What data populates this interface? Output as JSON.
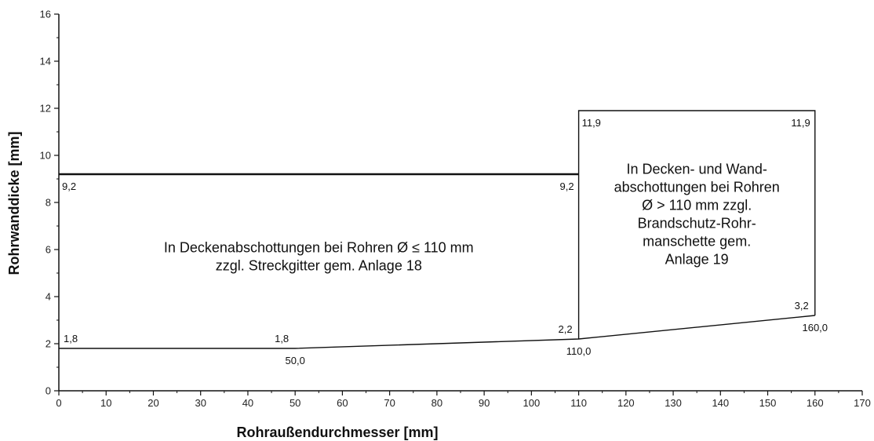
{
  "chart_data": {
    "type": "line",
    "xlabel": "Rohraußendurchmesser [mm]",
    "ylabel": "Rohrwanddicke [mm]",
    "xlim": [
      0,
      170
    ],
    "ylim": [
      0,
      16
    ],
    "xticks": [
      0,
      10,
      20,
      30,
      40,
      50,
      60,
      70,
      80,
      90,
      100,
      110,
      120,
      130,
      140,
      150,
      160,
      170
    ],
    "yticks": [
      0,
      2,
      4,
      6,
      8,
      10,
      12,
      14,
      16
    ],
    "grid": false,
    "series": [
      {
        "values": [
          [
            0,
            9.2
          ],
          [
            110,
            9.2
          ]
        ],
        "style": "thick"
      },
      {
        "values": [
          [
            0,
            1.8
          ],
          [
            50,
            1.8
          ],
          [
            110,
            2.2
          ],
          [
            160,
            3.2
          ]
        ],
        "style": "thin"
      },
      {
        "values": [
          [
            110,
            2.2
          ],
          [
            110,
            11.9
          ],
          [
            160,
            11.9
          ],
          [
            160,
            3.2
          ]
        ],
        "style": "thin"
      }
    ],
    "point_labels": [
      {
        "text": "9,2",
        "x": 0,
        "y": 9.2,
        "anchor": "below-right"
      },
      {
        "text": "9,2",
        "x": 110,
        "y": 9.2,
        "anchor": "below-left"
      },
      {
        "text": "11,9",
        "x": 110,
        "y": 11.9,
        "anchor": "below-right"
      },
      {
        "text": "11,9",
        "x": 160,
        "y": 11.9,
        "anchor": "below-left"
      },
      {
        "text": "1,8",
        "x": 0,
        "y": 1.8,
        "anchor": "above-right"
      },
      {
        "text": "1,8",
        "x": 50,
        "y": 1.8,
        "anchor": "above-left"
      },
      {
        "text": "50,0",
        "x": 50,
        "y": 1.8,
        "anchor": "below"
      },
      {
        "text": "2,2",
        "x": 110,
        "y": 2.2,
        "anchor": "above-left"
      },
      {
        "text": "110,0",
        "x": 110,
        "y": 2.2,
        "anchor": "below"
      },
      {
        "text": "3,2",
        "x": 160,
        "y": 3.2,
        "anchor": "above-left"
      },
      {
        "text": "160,0",
        "x": 160,
        "y": 3.2,
        "anchor": "below"
      }
    ],
    "annotations": [
      {
        "lines": [
          "In Deckenabschottungen bei Rohren Ø ≤ 110 mm",
          "zzgl. Streckgitter gem. Anlage 18"
        ],
        "x": 55,
        "y": 5.7
      },
      {
        "lines": [
          "In Decken- und Wand-",
          "abschottungen bei Rohren",
          "Ø > 110 mm zzgl.",
          "Brandschutz-Rohr-",
          "manschette gem.",
          "Anlage 19"
        ],
        "x": 135,
        "y": 7.5
      }
    ]
  }
}
